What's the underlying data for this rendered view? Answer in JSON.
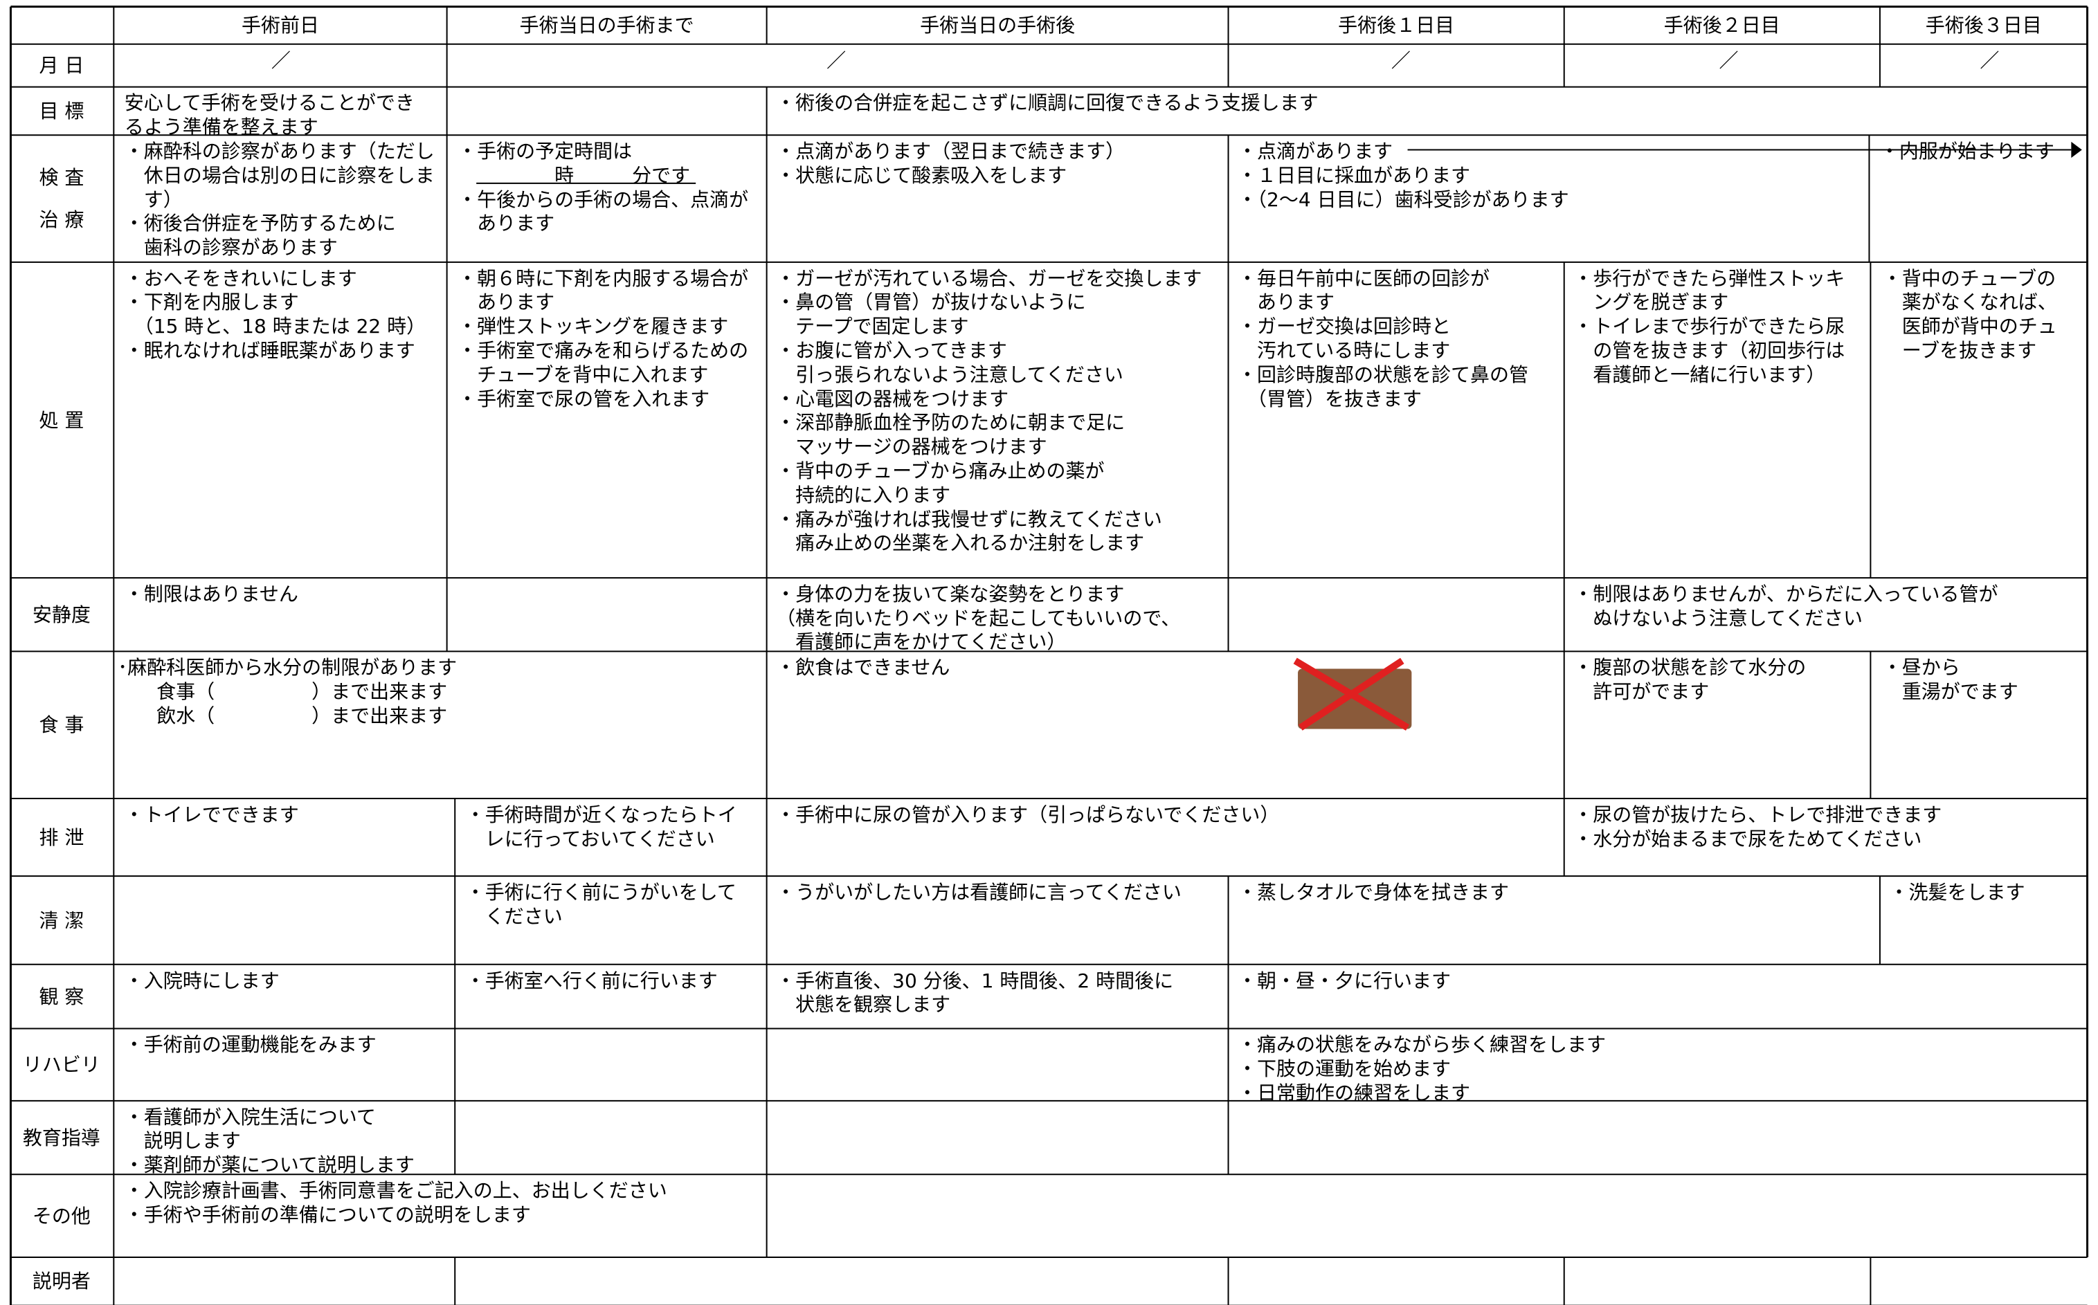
{
  "header": {
    "columns": [
      "手術前日",
      "手術当日の手術まで",
      "手術当日の手術後",
      "手術後１日目",
      "手術後２日目",
      "手術後３日目"
    ]
  },
  "rows": [
    {
      "label": [
        "月 日"
      ],
      "cells": [
        [
          "／"
        ],
        [
          "／"
        ],
        [
          "／"
        ],
        [
          "／"
        ],
        [
          "／"
        ]
      ]
    },
    {
      "label": [
        "目 標"
      ],
      "cells": [
        [
          "安心して手術を受けることができ",
          "るよう準備を整えます"
        ],
        [
          "・術後の合併症を起こさずに順調に回復できるよう支援します"
        ]
      ]
    },
    {
      "label": [
        "検 査",
        "治 療"
      ],
      "cells": [
        [
          "・麻酔科の診察があります（ただし",
          "　休日の場合は別の日に診察をしま",
          "　す）",
          "・術後合併症を予防するために",
          "　歯科の診察があります"
        ],
        [
          "・手術の予定時間は",
          "　　　　　時　　　分です",
          "・午後からの手術の場合、点滴が",
          "　あります"
        ],
        [
          "・点滴があります（翌日まで続きます）",
          "・状態に応じて酸素吸入をします"
        ],
        [
          "・点滴があります",
          "・１日目に採血があります",
          "・（2～4 日目に）歯科受診があります"
        ],
        [
          "・内服が始まります"
        ]
      ]
    },
    {
      "label": [
        "処 置"
      ],
      "cells": [
        [
          "・おへそをきれいにします",
          "・下剤を内服します",
          "　（15 時と、18 時または 22 時）",
          "・眠れなければ睡眠薬があります"
        ],
        [
          "・朝６時に下剤を内服する場合が",
          "　あります",
          "・弾性ストッキングを履きます",
          "・手術室で痛みを和らげるための",
          "　チューブを背中に入れます",
          "・手術室で尿の管を入れます"
        ],
        [
          "・ガーゼが汚れている場合、ガーゼを交換します",
          "・鼻の管（胃管）が抜けないように",
          "　テープで固定します",
          "・お腹に管が入ってきます",
          "　引っ張られないよう注意してください",
          "・心電図の器械をつけます",
          "・深部静脈血栓予防のために朝まで足に",
          "　マッサージの器械をつけます",
          "・背中のチューブから痛み止めの薬が",
          "　持続的に入ります",
          "・痛みが強ければ我慢せずに教えてください",
          "　痛み止めの坐薬を入れるか注射をします"
        ],
        [
          "・毎日午前中に医師の回診が",
          "　あります",
          "・ガーゼ交換は回診時と",
          "　汚れている時にします",
          "・回診時腹部の状態を診て鼻の管",
          "　（胃管）を抜きます"
        ],
        [
          "・歩行ができたら弾性ストッキ",
          "　ングを脱ぎます",
          "・トイレまで歩行ができたら尿",
          "　の管を抜きます（初回歩行は",
          "　看護師と一緒に行います）"
        ],
        [
          "・背中のチューブの",
          "　薬がなくなれば、",
          "　医師が背中のチュ",
          "　ーブを抜きます"
        ]
      ]
    },
    {
      "label": [
        "安静度"
      ],
      "cells": [
        [
          "・制限はありません"
        ],
        [
          "・身体の力を抜いて楽な姿勢をとります",
          "（横を向いたりベッドを起こしてもいいので、",
          "　看護師に声をかけてください）"
        ],
        [
          "・制限はありませんが、からだに入っている管が",
          "　ぬけないよう注意してください"
        ]
      ]
    },
    {
      "label": [
        "食 事"
      ],
      "cells": [
        [
          "･麻酔科医師から水分の制限があります",
          "　　食事（　　　　　）まで出来ます",
          "　　飲水（　　　　　）まで出来ます"
        ],
        [
          "・飲食はできません"
        ],
        [
          "・腹部の状態を診て水分の",
          "　許可がでます"
        ],
        [
          "・昼から",
          "　重湯がでます"
        ]
      ]
    },
    {
      "label": [
        "排 泄"
      ],
      "cells": [
        [
          "・トイレでできます"
        ],
        [
          "・手術時間が近くなったらトイ",
          "　レに行っておいてください"
        ],
        [
          "・手術中に尿の管が入ります（引っぱらないでください）"
        ],
        [
          "・尿の管が抜けたら、トレで排泄できます",
          "・水分が始まるまで尿をためてください"
        ]
      ]
    },
    {
      "label": [
        "清 潔"
      ],
      "cells": [
        [
          "・手術に行く前にうがいをして",
          "　ください"
        ],
        [
          "・うがいがしたい方は看護師に言ってください"
        ],
        [
          "・蒸しタオルで身体を拭きます"
        ],
        [
          "・洗髪をします"
        ]
      ]
    },
    {
      "label": [
        "観 察"
      ],
      "cells": [
        [
          "・入院時にします"
        ],
        [
          "・手術室へ行く前に行います"
        ],
        [
          "・手術直後、30 分後、1 時間後、2 時間後に",
          "　状態を観察します"
        ],
        [
          "・朝・昼・夕に行います"
        ]
      ]
    },
    {
      "label": [
        "リハビリ"
      ],
      "cells": [
        [
          "・手術前の運動機能をみます"
        ],
        [
          "・痛みの状態をみながら歩く練習をします",
          "・下肢の運動を始めます",
          "・日常動作の練習をします"
        ]
      ]
    },
    {
      "label": [
        "教育指導"
      ],
      "cells": [
        [
          "・看護師が入院生活について",
          "　説明します",
          "・薬剤師が薬について説明します"
        ]
      ]
    },
    {
      "label": [
        "その他"
      ],
      "cells": [
        [
          "・入院診療計画書、手術同意書をご記入の上、お出しください",
          "・手術や手術前の準備についての説明をします"
        ]
      ]
    },
    {
      "label": [
        "説明者"
      ],
      "cells": []
    }
  ]
}
